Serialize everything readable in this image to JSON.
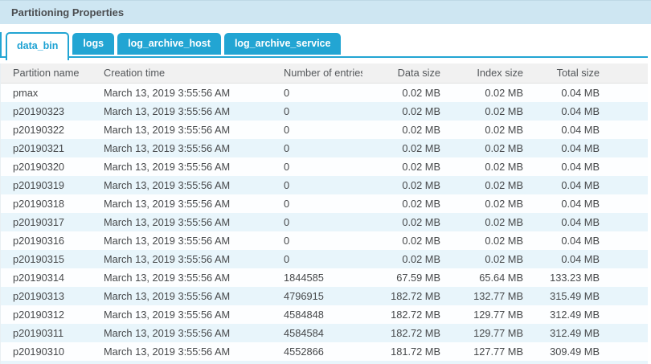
{
  "panel": {
    "title": "Partitioning Properties"
  },
  "tabs": [
    {
      "label": "data_bin",
      "active": true
    },
    {
      "label": "logs",
      "active": false
    },
    {
      "label": "log_archive_host",
      "active": false
    },
    {
      "label": "log_archive_service",
      "active": false
    }
  ],
  "table": {
    "columns": [
      "Partition name",
      "Creation time",
      "Number of entries",
      "Data size",
      "Index size",
      "Total size"
    ],
    "rows": [
      [
        "pmax",
        "March 13, 2019 3:55:56 AM",
        "0",
        "0.02 MB",
        "0.02 MB",
        "0.04 MB"
      ],
      [
        "p20190323",
        "March 13, 2019 3:55:56 AM",
        "0",
        "0.02 MB",
        "0.02 MB",
        "0.04 MB"
      ],
      [
        "p20190322",
        "March 13, 2019 3:55:56 AM",
        "0",
        "0.02 MB",
        "0.02 MB",
        "0.04 MB"
      ],
      [
        "p20190321",
        "March 13, 2019 3:55:56 AM",
        "0",
        "0.02 MB",
        "0.02 MB",
        "0.04 MB"
      ],
      [
        "p20190320",
        "March 13, 2019 3:55:56 AM",
        "0",
        "0.02 MB",
        "0.02 MB",
        "0.04 MB"
      ],
      [
        "p20190319",
        "March 13, 2019 3:55:56 AM",
        "0",
        "0.02 MB",
        "0.02 MB",
        "0.04 MB"
      ],
      [
        "p20190318",
        "March 13, 2019 3:55:56 AM",
        "0",
        "0.02 MB",
        "0.02 MB",
        "0.04 MB"
      ],
      [
        "p20190317",
        "March 13, 2019 3:55:56 AM",
        "0",
        "0.02 MB",
        "0.02 MB",
        "0.04 MB"
      ],
      [
        "p20190316",
        "March 13, 2019 3:55:56 AM",
        "0",
        "0.02 MB",
        "0.02 MB",
        "0.04 MB"
      ],
      [
        "p20190315",
        "March 13, 2019 3:55:56 AM",
        "0",
        "0.02 MB",
        "0.02 MB",
        "0.04 MB"
      ],
      [
        "p20190314",
        "March 13, 2019 3:55:56 AM",
        "1844585",
        "67.59 MB",
        "65.64 MB",
        "133.23 MB"
      ],
      [
        "p20190313",
        "March 13, 2019 3:55:56 AM",
        "4796915",
        "182.72 MB",
        "132.77 MB",
        "315.49 MB"
      ],
      [
        "p20190312",
        "March 13, 2019 3:55:56 AM",
        "4584848",
        "182.72 MB",
        "129.77 MB",
        "312.49 MB"
      ],
      [
        "p20190311",
        "March 13, 2019 3:55:56 AM",
        "4584584",
        "182.72 MB",
        "129.77 MB",
        "312.49 MB"
      ],
      [
        "p20190310",
        "March 13, 2019 3:55:56 AM",
        "4552866",
        "181.72 MB",
        "127.77 MB",
        "309.49 MB"
      ]
    ]
  },
  "colors": {
    "accent_blue": "#22a5d3",
    "titlebar_bg": "#cee6f2",
    "header_bg": "#f1f1f1",
    "row_alt_bg": "#e8f5fb"
  }
}
